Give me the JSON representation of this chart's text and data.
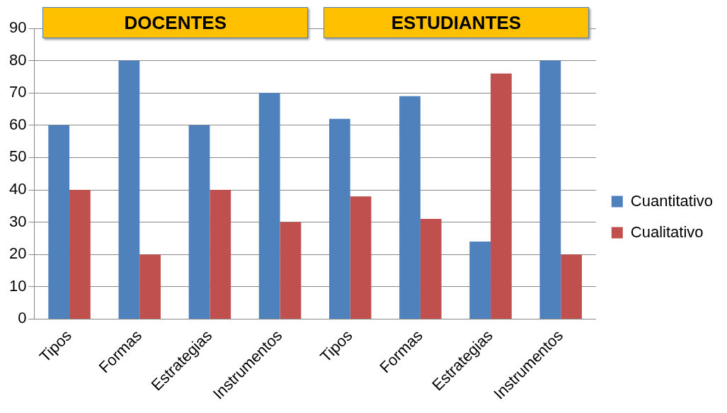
{
  "chart_data": {
    "type": "bar",
    "categories": [
      "Tipos",
      "Formas",
      "Estrategias",
      "Instrumentos",
      "Tipos",
      "Formas",
      "Estrategias",
      "Instrumentos"
    ],
    "series": [
      {
        "name": "Cuantitativo",
        "color": "#4f81bd",
        "values": [
          60,
          80,
          60,
          70,
          62,
          69,
          24,
          80
        ]
      },
      {
        "name": "Cualitativo",
        "color": "#c0504d",
        "values": [
          40,
          20,
          40,
          30,
          38,
          31,
          76,
          20
        ]
      }
    ],
    "ylim": [
      0,
      90
    ],
    "yticks": [
      0,
      10,
      20,
      30,
      40,
      50,
      60,
      70,
      80,
      90
    ],
    "grid": "y",
    "legend": "right",
    "annotations": [
      "DOCENTES",
      "ESTUDIANTES"
    ]
  }
}
